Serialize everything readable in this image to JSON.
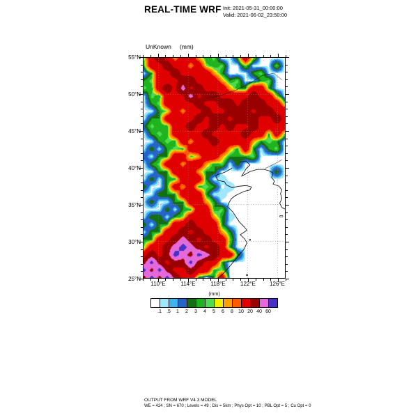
{
  "header": {
    "title": "REAL-TIME WRF",
    "init": "Init: 2021-05-31_00:00:00",
    "valid": "Valid: 2021-06-02_23:50:00"
  },
  "plot": {
    "field_label": "UnKnown",
    "units": "(mm)"
  },
  "axes": {
    "y_ticks": [
      "55°N",
      "50°N",
      "45°N",
      "40°N",
      "35°N",
      "30°N",
      "25°N"
    ],
    "x_ticks": [
      "110°E",
      "114°E",
      "118°E",
      "122°E",
      "126°E"
    ]
  },
  "colorbar": {
    "units": "(mm)",
    "levels": [
      ".1",
      ".5",
      "1",
      "2",
      "3",
      "4",
      "5",
      "6",
      "8",
      "10",
      "20",
      "40",
      "60"
    ],
    "colors": [
      "#FFFFFF",
      "#A0E6FF",
      "#3CB4F0",
      "#2864C8",
      "#146E14",
      "#1EB41E",
      "#50DC50",
      "#F0F000",
      "#FFA000",
      "#FF5A00",
      "#E10000",
      "#9B0000",
      "#E669DC",
      "#4632C8"
    ]
  },
  "footer": {
    "line1": "OUTPUT FROM WRF V4.3 MODEL",
    "line2": "WE = 424 ; SN = 670 ; Levels = 49 ; Dis = 5km ; Phys Opt = 10 ; PBL Opt = 5 ; Cu Opt = 0"
  },
  "chart_data": {
    "type": "heatmap",
    "title": "REAL-TIME WRF",
    "field": "UnKnown (mm)",
    "legend_title": "(mm)",
    "lon_range": [
      108,
      127
    ],
    "lat_range": [
      25,
      55
    ],
    "levels_mm": [
      0.1,
      0.5,
      1,
      2,
      3,
      4,
      5,
      6,
      8,
      10,
      20,
      40,
      60
    ],
    "palette": [
      "#FFFFFF",
      "#A0E6FF",
      "#3CB4F0",
      "#2864C8",
      "#146E14",
      "#1EB41E",
      "#50DC50",
      "#F0F000",
      "#FFA000",
      "#FF5A00",
      "#E10000",
      "#9B0000",
      "#E669DC",
      "#4632C8"
    ],
    "grid": {
      "lon_start": 108,
      "lon_step": 1,
      "lat_start": 55,
      "lat_step": -1,
      "note": "approximate 1-degree precipitation field (mm), rows north to south",
      "values": [
        [
          4.5,
          15,
          30,
          15,
          7,
          15,
          15,
          7,
          3,
          4.5,
          0,
          0,
          3,
          15,
          4.5,
          0,
          0,
          0,
          0
        ],
        [
          3,
          15,
          15,
          30,
          15,
          15,
          7,
          15,
          4.5,
          3,
          4.5,
          0,
          0,
          4.5,
          0,
          0,
          0,
          4.5,
          0
        ],
        [
          0,
          3,
          15,
          15,
          30,
          15,
          15,
          15,
          15,
          7,
          3,
          0,
          0,
          0,
          3,
          4.5,
          0,
          0,
          0
        ],
        [
          3,
          4.5,
          15,
          15,
          15,
          30,
          30,
          15,
          15,
          15,
          7,
          3,
          4.5,
          0,
          0,
          3,
          4.5,
          0,
          0
        ],
        [
          4.5,
          3,
          15,
          30,
          15,
          50,
          15,
          30,
          15,
          15,
          15,
          7,
          3,
          3,
          15,
          15,
          3,
          0,
          0
        ],
        [
          0,
          4.5,
          3,
          15,
          15,
          15,
          50,
          15,
          30,
          30,
          15,
          15,
          15,
          15,
          30,
          15,
          15,
          4.5,
          0
        ],
        [
          0,
          3,
          4.5,
          15,
          15,
          15,
          15,
          30,
          15,
          15,
          30,
          30,
          15,
          30,
          30,
          30,
          15,
          15,
          4.5
        ],
        [
          0,
          0,
          3,
          4.5,
          15,
          7,
          15,
          15,
          30,
          15,
          15,
          30,
          30,
          30,
          15,
          30,
          30,
          15,
          15
        ],
        [
          0,
          3,
          3,
          15,
          15,
          15,
          15,
          30,
          15,
          30,
          30,
          15,
          30,
          30,
          30,
          15,
          15,
          30,
          15
        ],
        [
          2,
          4.5,
          3,
          3,
          15,
          15,
          30,
          15,
          15,
          30,
          15,
          30,
          15,
          15,
          30,
          15,
          15,
          15,
          15
        ],
        [
          0,
          3,
          4.5,
          3,
          15,
          15,
          15,
          15,
          30,
          15,
          15,
          15,
          15,
          30,
          15,
          15,
          3,
          15,
          4.5
        ],
        [
          0,
          0,
          3,
          4.5,
          3,
          15,
          7,
          15,
          15,
          30,
          15,
          15,
          15,
          15,
          7,
          3,
          4.5,
          3,
          0
        ],
        [
          0,
          3,
          0,
          3,
          4.5,
          3,
          15,
          15,
          15,
          15,
          15,
          7,
          3,
          15,
          3,
          0,
          3,
          4.5,
          0
        ],
        [
          2,
          0,
          3,
          3,
          15,
          15,
          3,
          7,
          15,
          15,
          7,
          3,
          3,
          3,
          4.5,
          0,
          0,
          0,
          0
        ],
        [
          0,
          3,
          4.5,
          15,
          15,
          7,
          15,
          15,
          7,
          3,
          4.5,
          0,
          3,
          0,
          0,
          0,
          0,
          0,
          0
        ],
        [
          0,
          0,
          3,
          3,
          15,
          15,
          15,
          7,
          3,
          3,
          0,
          0,
          0,
          0,
          0,
          0,
          0,
          3,
          0
        ],
        [
          0,
          3,
          0,
          3,
          3,
          15,
          15,
          15,
          3,
          0,
          0.3,
          0,
          0,
          0,
          0,
          0,
          0,
          0,
          0
        ],
        [
          3,
          0,
          0,
          3,
          15,
          7,
          15,
          3,
          4.5,
          3,
          0,
          0.3,
          0,
          0,
          0,
          0,
          0,
          0,
          0
        ],
        [
          0,
          0,
          3,
          3,
          3,
          15,
          15,
          15,
          3,
          0,
          0.3,
          0,
          0,
          0,
          0,
          0,
          0,
          0,
          0
        ],
        [
          0,
          3,
          0,
          0,
          3,
          3,
          15,
          15,
          7,
          3,
          0,
          0,
          0,
          0,
          0,
          0,
          0,
          0,
          0
        ],
        [
          0,
          0,
          0,
          3,
          0,
          3,
          3,
          15,
          15,
          3,
          4.5,
          0,
          0,
          0,
          0,
          0,
          0,
          0,
          0
        ],
        [
          0,
          3,
          3,
          0,
          3,
          4.5,
          15,
          15,
          15,
          7,
          3,
          0.3,
          0,
          0,
          0,
          0,
          0,
          0,
          0
        ],
        [
          3,
          0,
          3,
          3,
          15,
          15,
          30,
          15,
          15,
          15,
          3,
          0,
          0,
          0,
          0,
          0,
          0,
          0,
          0
        ],
        [
          0,
          3,
          3,
          15,
          15,
          30,
          15,
          30,
          15,
          15,
          7,
          3,
          0,
          0,
          0,
          0,
          0,
          0,
          0
        ],
        [
          3,
          3,
          15,
          15,
          30,
          50,
          30,
          15,
          30,
          15,
          15,
          4.5,
          0,
          0,
          0,
          0,
          0,
          0,
          0
        ],
        [
          4.5,
          15,
          15,
          30,
          50,
          70,
          50,
          30,
          15,
          30,
          15,
          3,
          0,
          0,
          0,
          0,
          0,
          0,
          0
        ],
        [
          15,
          30,
          15,
          30,
          70,
          50,
          30,
          70,
          50,
          30,
          15,
          15,
          3,
          0,
          0,
          0,
          0,
          0,
          0
        ],
        [
          30,
          70,
          30,
          15,
          30,
          30,
          70,
          30,
          15,
          15,
          3,
          0,
          0,
          0,
          0,
          0,
          0,
          0,
          0
        ],
        [
          70,
          30,
          70,
          30,
          15,
          15,
          30,
          15,
          15,
          3,
          4.5,
          0,
          0,
          0,
          0,
          0,
          0,
          0,
          0
        ],
        [
          30,
          70,
          30,
          70,
          30,
          15,
          15,
          3,
          0,
          3,
          15,
          0,
          0,
          0,
          0,
          0,
          0,
          0,
          0
        ]
      ]
    }
  }
}
